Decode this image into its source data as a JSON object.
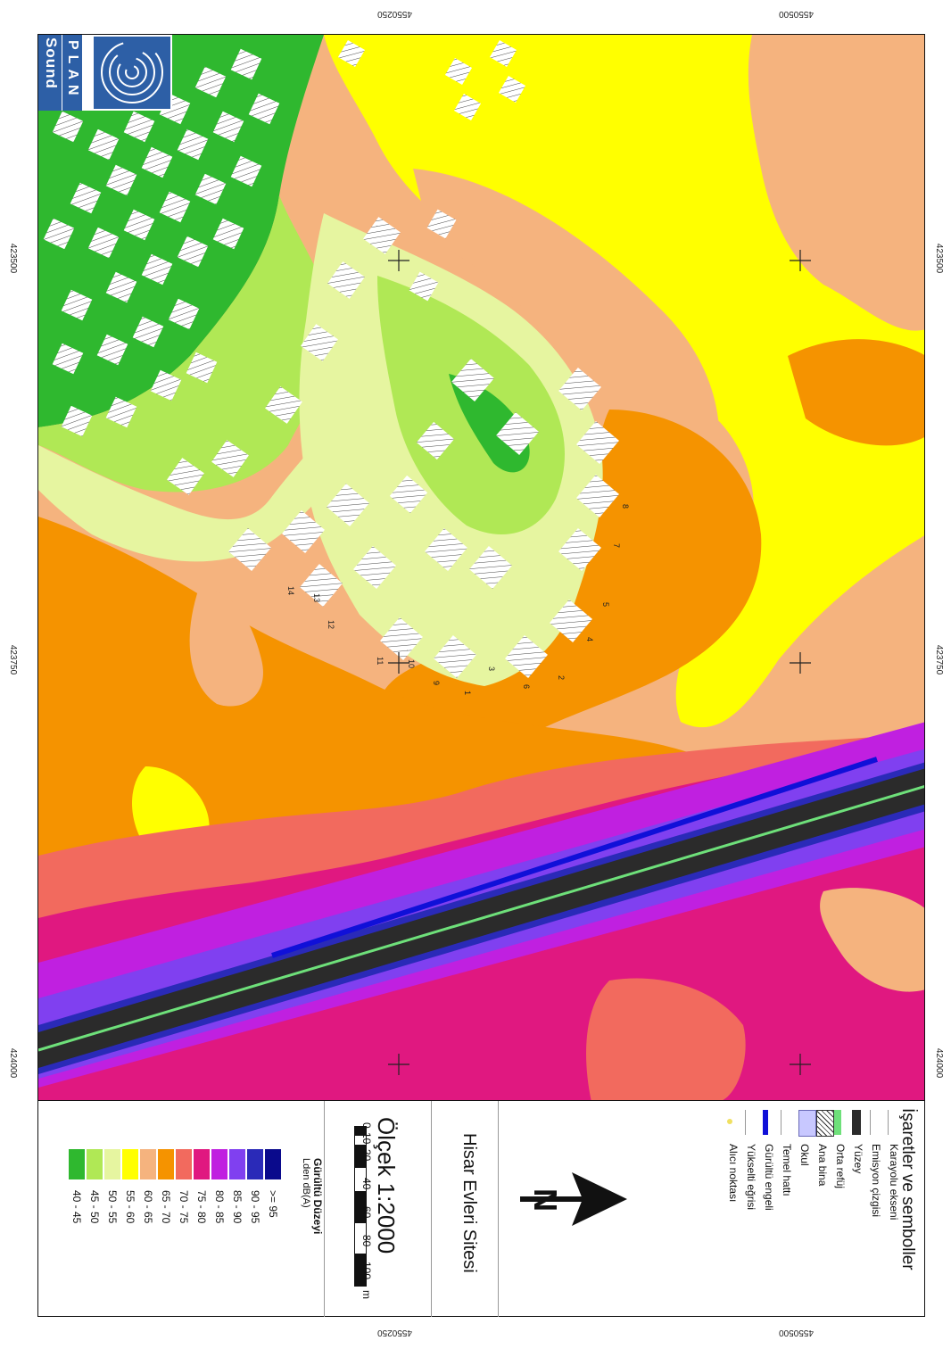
{
  "coords": {
    "top": [
      "4550250",
      "4550500"
    ],
    "bottom": [
      "4550250",
      "4550500"
    ],
    "left": [
      "423500",
      "423750",
      "424000"
    ],
    "right": [
      "423500",
      "423750",
      "424000"
    ]
  },
  "logo": {
    "line1": "Sound",
    "line2": "PLAN"
  },
  "receiver_labels": [
    "1",
    "2",
    "3",
    "4",
    "5",
    "6",
    "7",
    "8",
    "9",
    "10",
    "11",
    "12",
    "13",
    "14"
  ],
  "legend": {
    "symbols_title": "İşaretler ve semboller",
    "symbols": [
      {
        "label": "Karayolu ekseni",
        "icon": "thin-line-icon"
      },
      {
        "label": "Emisyon çizgisi",
        "icon": "thin-line-icon"
      },
      {
        "label": "Yüzey",
        "icon": "road-surface-icon"
      },
      {
        "label": "Orta refüj",
        "icon": "median-icon"
      },
      {
        "label": "Ana bina",
        "icon": "hatched-building-icon"
      },
      {
        "label": "Okul",
        "icon": "school-icon"
      },
      {
        "label": "Temel hattı",
        "icon": "thin-line-icon"
      },
      {
        "label": "Gürültü engeli",
        "icon": "noise-barrier-icon"
      },
      {
        "label": "Yükselti eğrisi",
        "icon": "contour-line-icon"
      },
      {
        "label": "Alıcı noktası",
        "icon": "receiver-point-icon"
      }
    ],
    "north_symbol": "N",
    "site_name": "Hisar Evleri Sitesi",
    "scale_title": "Ölçek 1:2000",
    "scale_ticks": [
      "0",
      "10",
      "20",
      "40",
      "60",
      "80",
      "100"
    ],
    "scale_unit": "m",
    "noise_title": "Gürültü Düzeyi",
    "noise_subtitle": "Lden dB(A)",
    "noise_classes": [
      {
        "label": ">= 95",
        "color": "#0a0a8c"
      },
      {
        "label": "90 - 95",
        "color": "#2a2ab8"
      },
      {
        "label": "85 - 90",
        "color": "#8040f0"
      },
      {
        "label": "80 - 85",
        "color": "#c020e0"
      },
      {
        "label": "75 - 80",
        "color": "#e01880"
      },
      {
        "label": "70 - 75",
        "color": "#f26a5e"
      },
      {
        "label": "65 - 70",
        "color": "#f59300"
      },
      {
        "label": "60 - 65",
        "color": "#f5b37e"
      },
      {
        "label": "55 - 60",
        "color": "#ffff00"
      },
      {
        "label": "50 - 55",
        "color": "#e6f5a0"
      },
      {
        "label": "45 - 50",
        "color": "#b0e855"
      },
      {
        "label": "40 - 45",
        "color": "#2fb82f"
      }
    ]
  }
}
